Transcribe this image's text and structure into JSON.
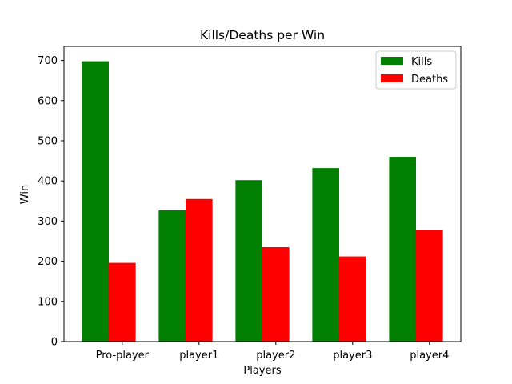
{
  "chart_data": {
    "type": "bar",
    "title": "Kills/Deaths per Win",
    "xlabel": "Players",
    "ylabel": "Win",
    "categories": [
      "Pro-player",
      "player1",
      "player2",
      "player3",
      "player4"
    ],
    "series": [
      {
        "name": "Kills",
        "color": "#008000",
        "values": [
          698,
          327,
          402,
          432,
          460
        ]
      },
      {
        "name": "Deaths",
        "color": "#ff0000",
        "values": [
          196,
          355,
          235,
          212,
          277
        ]
      }
    ],
    "ylim": [
      0,
      735
    ],
    "yticks": [
      0,
      100,
      200,
      300,
      400,
      500,
      600,
      700
    ],
    "grid": false,
    "legend_position": "top-right"
  }
}
